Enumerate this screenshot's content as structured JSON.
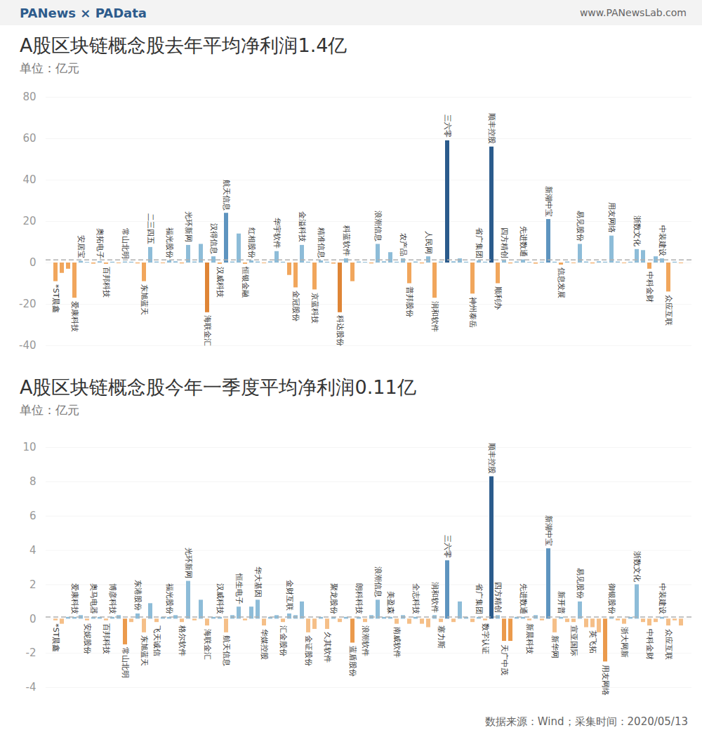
{
  "header": {
    "brand": "PANews × PAData",
    "url": "www.PANewsLab.com"
  },
  "footer": "数据来源：Wind；采集时间：2020/05/13",
  "chart_data": [
    {
      "type": "bar",
      "title": "A股区块链概念股去年平均净利润1.4亿",
      "subtitle": "单位：亿元",
      "categories": [
        "*ST晨鑫",
        null,
        null,
        "爱康科技",
        "安居宝",
        null,
        null,
        "奥拓电子",
        "百邦科技",
        null,
        null,
        "常山北明",
        null,
        null,
        "东旭蓝天",
        "二三四五",
        null,
        null,
        "福光股份",
        null,
        null,
        "光环新网",
        null,
        null,
        "海联金汇",
        "汉得信息",
        "汉威科技",
        "航天信息",
        null,
        null,
        "恒银金融",
        "红相股份",
        null,
        null,
        null,
        "华宇软件",
        null,
        null,
        "金冠股份",
        "金溢科技",
        null,
        "京蓝科技",
        "精准信息",
        null,
        null,
        "科达股份",
        "科蓝软件",
        null,
        null,
        null,
        null,
        "浪潮信息",
        null,
        null,
        null,
        "农产品",
        "普邦股份",
        null,
        null,
        "人民网",
        "润和软件",
        null,
        "三六零",
        null,
        null,
        null,
        "神州泰岳",
        "省广集团",
        null,
        "顺丰控股",
        "顺利办",
        "四方精创",
        null,
        null,
        "先进数通",
        null,
        null,
        null,
        "新湖中宝",
        null,
        "信息发展",
        null,
        null,
        "易见股份",
        null,
        null,
        null,
        null,
        "用友网络",
        null,
        null,
        null,
        "浙数文化",
        null,
        "中科金财",
        null,
        "中装建设",
        "众应互联",
        null,
        null
      ],
      "values": [
        -9,
        -5,
        -3,
        -17,
        0.8,
        0.3,
        -0.5,
        0.6,
        -0.6,
        0.4,
        -0.3,
        0.5,
        0.4,
        -0.4,
        -9,
        7.5,
        0.5,
        -0.3,
        1,
        0.6,
        -0.4,
        8.5,
        0.5,
        9,
        -24,
        3,
        -0.6,
        24,
        0.5,
        14,
        -0.6,
        1,
        0.5,
        -0.3,
        0.6,
        5.5,
        0.4,
        -6,
        -12,
        8.5,
        0.4,
        -13,
        1,
        0.4,
        -0.5,
        -24,
        2,
        -9,
        0.5,
        0.3,
        -0.4,
        9,
        0.6,
        5,
        0.4,
        2,
        -10,
        0.5,
        -0.4,
        3,
        -17,
        0.5,
        59,
        0.6,
        2,
        0.4,
        -15,
        1,
        0.4,
        56,
        -10,
        1,
        -0.4,
        0.5,
        1.5,
        0.3,
        -0.5,
        0.4,
        21,
        0.4,
        -1,
        0.5,
        -0.3,
        9,
        0.5,
        -0.4,
        0.6,
        0.4,
        13,
        0.5,
        -0.3,
        0.4,
        6.5,
        6,
        -3,
        3,
        2,
        -14,
        0.4,
        -0.3
      ],
      "colors": [
        "#f1a65c",
        "#f1a65c",
        "#f1a65c",
        "#f1a65c",
        "#8dbcd8",
        "#8dbcd8",
        "#f1a65c",
        "#8dbcd8",
        "#f1a65c",
        "#8dbcd8",
        "#f1a65c",
        "#8dbcd8",
        "#8dbcd8",
        "#f1a65c",
        "#f1a65c",
        "#8dbcd8",
        "#8dbcd8",
        "#f1a65c",
        "#8dbcd8",
        "#8dbcd8",
        "#f1a65c",
        "#8dbcd8",
        "#8dbcd8",
        "#8dbcd8",
        "#df8536",
        "#8dbcd8",
        "#f1a65c",
        "#5e94bf",
        "#8dbcd8",
        "#8dbcd8",
        "#f1a65c",
        "#8dbcd8",
        "#8dbcd8",
        "#f1a65c",
        "#8dbcd8",
        "#8dbcd8",
        "#8dbcd8",
        "#f1a65c",
        "#f1a65c",
        "#8dbcd8",
        "#8dbcd8",
        "#f1a65c",
        "#8dbcd8",
        "#8dbcd8",
        "#f1a65c",
        "#df8536",
        "#8dbcd8",
        "#f1a65c",
        "#8dbcd8",
        "#8dbcd8",
        "#f1a65c",
        "#8dbcd8",
        "#8dbcd8",
        "#8dbcd8",
        "#8dbcd8",
        "#8dbcd8",
        "#f1a65c",
        "#8dbcd8",
        "#f1a65c",
        "#8dbcd8",
        "#f1a65c",
        "#8dbcd8",
        "#2b5b8c",
        "#8dbcd8",
        "#8dbcd8",
        "#8dbcd8",
        "#f1a65c",
        "#8dbcd8",
        "#8dbcd8",
        "#2b5b8c",
        "#f1a65c",
        "#8dbcd8",
        "#f1a65c",
        "#8dbcd8",
        "#8dbcd8",
        "#8dbcd8",
        "#f1a65c",
        "#8dbcd8",
        "#5e94bf",
        "#8dbcd8",
        "#f1a65c",
        "#8dbcd8",
        "#f1a65c",
        "#8dbcd8",
        "#8dbcd8",
        "#f1a65c",
        "#8dbcd8",
        "#8dbcd8",
        "#8dbcd8",
        "#8dbcd8",
        "#f1a65c",
        "#8dbcd8",
        "#8dbcd8",
        "#8dbcd8",
        "#f1a65c",
        "#8dbcd8",
        "#8dbcd8",
        "#f1a65c",
        "#8dbcd8",
        "#f1a65c"
      ],
      "reference_line": 1.4,
      "ylim": [
        -40,
        80
      ],
      "yticks": [
        -40,
        -20,
        0,
        20,
        40,
        60,
        80
      ],
      "grid": true
    },
    {
      "type": "bar",
      "title": "A股区块链概念股今年一季度平均净利润0.11亿",
      "subtitle": "单位：亿元",
      "categories": [
        "*ST晨鑫",
        null,
        null,
        "爱康科技",
        null,
        "安妮股份",
        "奥马电器",
        null,
        "百邦科技",
        "博彦科技",
        null,
        "常山北明",
        null,
        "东港股份",
        "东旭蓝天",
        null,
        "飞天诚信",
        null,
        "福光股份",
        null,
        "格尔软件",
        "光环新网",
        null,
        null,
        "海联金汇",
        null,
        "汉威科技",
        "航天信息",
        null,
        "恒生电子",
        null,
        null,
        "华大基因",
        "华媒控股",
        null,
        null,
        "汇金股份",
        "金财互联",
        null,
        null,
        "金证股份",
        null,
        null,
        "久其软件",
        "聚龙股份",
        null,
        null,
        "蓝盾股份",
        "朗科科技",
        "浪潮软件",
        null,
        "浪潮信息",
        null,
        "美盈森",
        "南威软件",
        null,
        null,
        "全志科技",
        null,
        null,
        "润和软件",
        "塞力斯",
        "三六零",
        null,
        null,
        null,
        null,
        "省广集团",
        "数字认证",
        "顺丰控股",
        "四方精创",
        "天广中茂",
        null,
        null,
        "先进数通",
        "新晨科技",
        null,
        null,
        "新湖中宝",
        "新华网",
        "新开普",
        null,
        "宣亚国际",
        "易见股份",
        null,
        "英飞拓",
        null,
        "用友网络",
        "御银股份",
        null,
        "浙大网新",
        null,
        "浙数文化",
        null,
        "中科金财",
        null,
        "中装建设",
        "众应互联",
        null,
        null
      ],
      "values": [
        -0.1,
        -0.3,
        0.1,
        0.1,
        0.2,
        -0.1,
        0.1,
        0.1,
        -0.1,
        0.1,
        0.2,
        -1.5,
        -0.2,
        0.3,
        -0.8,
        0.9,
        -0.2,
        0.1,
        0.1,
        0.2,
        -0.2,
        2.2,
        -0.1,
        1.1,
        -0.4,
        0.1,
        0.1,
        -0.8,
        0.2,
        0.7,
        -0.1,
        0.7,
        1.1,
        -0.4,
        0.1,
        0.2,
        -0.2,
        0.3,
        0.2,
        1,
        -0.8,
        -0.6,
        0.1,
        -0.6,
        0.1,
        -0.2,
        0.1,
        -1.4,
        0.1,
        -0.2,
        0.2,
        1.1,
        0.1,
        0.1,
        -0.3,
        0.2,
        -0.3,
        0.1,
        -0.3,
        -0.5,
        0.2,
        -0.2,
        3.4,
        -0.2,
        1,
        0.1,
        -0.2,
        0.1,
        -0.1,
        8.3,
        0.2,
        -1.3,
        -1.3,
        0.1,
        0.1,
        -0.1,
        0.2,
        -0.1,
        4.1,
        -0.8,
        0.1,
        -0.2,
        -0.2,
        1,
        -0.5,
        -0.5,
        -0.8,
        -2.5,
        0.1,
        -0.1,
        -0.3,
        0.1,
        2,
        -0.2,
        -0.4,
        -0.2,
        0.1,
        -0.4,
        -0.1,
        -0.4
      ],
      "colors": [
        "#f5bf88",
        "#f5bf88",
        "#8dbcd8",
        "#8dbcd8",
        "#8dbcd8",
        "#f5bf88",
        "#8dbcd8",
        "#8dbcd8",
        "#f5bf88",
        "#8dbcd8",
        "#8dbcd8",
        "#eb9a4c",
        "#f5bf88",
        "#8dbcd8",
        "#f5bf88",
        "#8dbcd8",
        "#f5bf88",
        "#8dbcd8",
        "#8dbcd8",
        "#8dbcd8",
        "#f5bf88",
        "#8dbcd8",
        "#f5bf88",
        "#8dbcd8",
        "#f5bf88",
        "#8dbcd8",
        "#8dbcd8",
        "#f5bf88",
        "#8dbcd8",
        "#8dbcd8",
        "#f5bf88",
        "#8dbcd8",
        "#8dbcd8",
        "#f5bf88",
        "#8dbcd8",
        "#8dbcd8",
        "#f5bf88",
        "#8dbcd8",
        "#8dbcd8",
        "#8dbcd8",
        "#f5bf88",
        "#f5bf88",
        "#8dbcd8",
        "#f5bf88",
        "#8dbcd8",
        "#f5bf88",
        "#8dbcd8",
        "#eb9a4c",
        "#8dbcd8",
        "#f5bf88",
        "#8dbcd8",
        "#8dbcd8",
        "#8dbcd8",
        "#8dbcd8",
        "#f5bf88",
        "#8dbcd8",
        "#f5bf88",
        "#8dbcd8",
        "#f5bf88",
        "#f5bf88",
        "#8dbcd8",
        "#f5bf88",
        "#5e94bf",
        "#f5bf88",
        "#8dbcd8",
        "#8dbcd8",
        "#f5bf88",
        "#8dbcd8",
        "#f5bf88",
        "#2b5b8c",
        "#8dbcd8",
        "#eb9a4c",
        "#eb9a4c",
        "#8dbcd8",
        "#8dbcd8",
        "#f5bf88",
        "#8dbcd8",
        "#f5bf88",
        "#5e94bf",
        "#f5bf88",
        "#8dbcd8",
        "#f5bf88",
        "#f5bf88",
        "#8dbcd8",
        "#f5bf88",
        "#f5bf88",
        "#f5bf88",
        "#eb9a4c",
        "#8dbcd8",
        "#f5bf88",
        "#f5bf88",
        "#8dbcd8",
        "#8dbcd8",
        "#f5bf88",
        "#f5bf88",
        "#f5bf88",
        "#8dbcd8",
        "#f5bf88",
        "#f5bf88",
        "#f5bf88"
      ],
      "reference_line": 0.11,
      "ylim": [
        -4,
        10
      ],
      "yticks": [
        -4,
        -2,
        0,
        2,
        4,
        6,
        8,
        10
      ],
      "grid": true
    }
  ]
}
